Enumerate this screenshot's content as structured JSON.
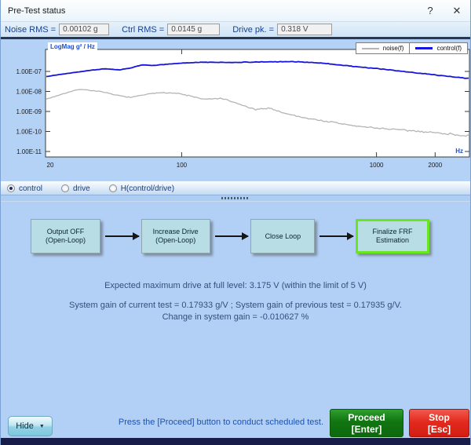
{
  "window": {
    "title": "Pre-Test status",
    "help": "?",
    "close": "✕"
  },
  "readouts": [
    {
      "label": "Noise RMS =",
      "value": "0.00102 g"
    },
    {
      "label": "Ctrl RMS =",
      "value": "0.0145 g"
    },
    {
      "label": "Drive pk. =",
      "value": "0.318 V"
    }
  ],
  "chart_data": {
    "type": "line",
    "title": "LogMag g² / Hz",
    "xlabel": "Hz",
    "x_scale": "log",
    "y_scale": "log",
    "xlim": [
      20,
      3000
    ],
    "grid": false,
    "legend_position": "top-right",
    "x_ticks": [
      {
        "value": 20,
        "label": "20"
      },
      {
        "value": 100,
        "label": "100"
      },
      {
        "value": 1000,
        "label": "1000"
      },
      {
        "value": 2000,
        "label": "2000"
      }
    ],
    "y_ticks": [
      {
        "value": 1e-07,
        "label": "1.00E-07"
      },
      {
        "value": 1e-08,
        "label": "1.00E-08"
      },
      {
        "value": 1e-09,
        "label": "1.00E-09"
      },
      {
        "value": 1e-10,
        "label": "1.00E-10"
      },
      {
        "value": 1e-11,
        "label": "1.00E-11"
      }
    ],
    "series": [
      {
        "name": "noise(f)",
        "color": "#b4b4b4",
        "points": [
          [
            20,
            4e-09
          ],
          [
            25,
            8e-09
          ],
          [
            30,
            1.3e-08
          ],
          [
            38,
            1e-08
          ],
          [
            46,
            6.5e-09
          ],
          [
            55,
            5e-09
          ],
          [
            65,
            7e-09
          ],
          [
            80,
            9e-09
          ],
          [
            95,
            8e-09
          ],
          [
            110,
            6e-09
          ],
          [
            130,
            4e-09
          ],
          [
            160,
            4.5e-09
          ],
          [
            200,
            2.2e-09
          ],
          [
            240,
            1.2e-09
          ],
          [
            280,
            1.5e-09
          ],
          [
            340,
            8e-10
          ],
          [
            420,
            5e-10
          ],
          [
            520,
            3.5e-10
          ],
          [
            650,
            2.5e-10
          ],
          [
            800,
            1.8e-10
          ],
          [
            1000,
            1.5e-10
          ],
          [
            1300,
            1.2e-10
          ],
          [
            1700,
            1e-10
          ],
          [
            2200,
            8e-11
          ],
          [
            3000,
            6e-11
          ]
        ]
      },
      {
        "name": "control(f)",
        "color": "#1515dd",
        "points": [
          [
            20,
            5.5e-08
          ],
          [
            26,
            8e-08
          ],
          [
            33,
            1.1e-07
          ],
          [
            40,
            1.35e-07
          ],
          [
            48,
            1.2e-07
          ],
          [
            55,
            1.5e-07
          ],
          [
            62,
            2.1e-07
          ],
          [
            72,
            2e-07
          ],
          [
            85,
            2.3e-07
          ],
          [
            100,
            2.6e-07
          ],
          [
            130,
            2.9e-07
          ],
          [
            170,
            2.8e-07
          ],
          [
            220,
            2.9e-07
          ],
          [
            280,
            3e-07
          ],
          [
            360,
            3.1e-07
          ],
          [
            440,
            2.9e-07
          ],
          [
            520,
            2.6e-07
          ],
          [
            650,
            2.1e-07
          ],
          [
            800,
            1.7e-07
          ],
          [
            1000,
            1.4e-07
          ],
          [
            1300,
            1.05e-07
          ],
          [
            1700,
            8e-08
          ],
          [
            2200,
            6e-08
          ],
          [
            3000,
            4.5e-08
          ]
        ]
      }
    ]
  },
  "plot_selector": {
    "options": [
      {
        "label": "control",
        "selected": true
      },
      {
        "label": "drive",
        "selected": false
      },
      {
        "label": "H(control/drive)",
        "selected": false
      }
    ]
  },
  "flow": {
    "steps": [
      {
        "label": "Output OFF (Open-Loop)",
        "active": false
      },
      {
        "label": "Increase Drive (Open-Loop)",
        "active": false
      },
      {
        "label": "Close Loop",
        "active": false
      },
      {
        "label": "Finalize FRF Estimation",
        "active": true
      }
    ]
  },
  "messages": {
    "line1": "Expected maximum drive at full level: 3.175 V (within the limit of 5 V)",
    "line2": "System gain of current test = 0.17933 g/V ; System gain of previous test = 0.17935 g/V.",
    "line3": "Change in system gain = -0.010627 %"
  },
  "footer": {
    "hide_label": "Hide",
    "instruction": "Press the [Proceed] button to conduct scheduled test.",
    "proceed_label": "Proceed",
    "proceed_key": "[Enter]",
    "stop_label": "Stop",
    "stop_key": "[Esc]"
  },
  "colors": {
    "accent_green": "#117511",
    "accent_red": "#e42a1e",
    "active_step_border": "#68e61f",
    "control_trace": "#1515dd",
    "noise_trace": "#b4b4b4"
  }
}
